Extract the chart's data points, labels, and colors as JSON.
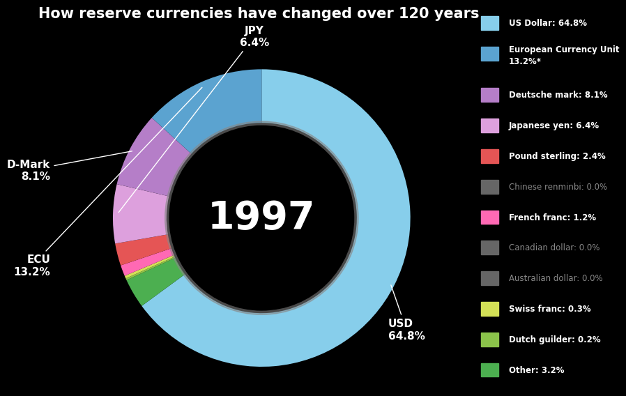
{
  "title": "How reserve currencies have changed over 120 years",
  "year": "1997",
  "background_color": "#000000",
  "title_color": "#ffffff",
  "center_text_color": "#ffffff",
  "segments": [
    {
      "label": "USD",
      "display": "USD\n64.8%",
      "value": 64.8,
      "color": "#87CEEB"
    },
    {
      "label": "Other",
      "display": "",
      "value": 3.2,
      "color": "#4CAF50"
    },
    {
      "label": "Dutch",
      "display": "",
      "value": 0.2,
      "color": "#8BC34A"
    },
    {
      "label": "Swiss",
      "display": "",
      "value": 0.3,
      "color": "#D4E157"
    },
    {
      "label": "French",
      "display": "",
      "value": 1.2,
      "color": "#FF69B4"
    },
    {
      "label": "Pound",
      "display": "",
      "value": 2.4,
      "color": "#E55555"
    },
    {
      "label": "JPY",
      "display": "JPY\n6.4%",
      "value": 6.4,
      "color": "#DDA0DD"
    },
    {
      "label": "D-Mark",
      "display": "D-Mark\n8.1%",
      "value": 8.1,
      "color": "#B57EC8"
    },
    {
      "label": "ECU",
      "display": "ECU\n13.2%",
      "value": 13.2,
      "color": "#5BA3D0"
    }
  ],
  "legend_entries": [
    {
      "label": "US Dollar: 64.8%",
      "color": "#87CEEB",
      "dimmed": false
    },
    {
      "label": "European Currency Unit\n13.2%*",
      "color": "#5BA3D0",
      "dimmed": false
    },
    {
      "label": "Deutsche mark: 8.1%",
      "color": "#B57EC8",
      "dimmed": false
    },
    {
      "label": "Japanese yen: 6.4%",
      "color": "#DDA0DD",
      "dimmed": false
    },
    {
      "label": "Pound sterling: 2.4%",
      "color": "#E55555",
      "dimmed": false
    },
    {
      "label": "Chinese renminbi: 0.0%",
      "color": "#666666",
      "dimmed": true
    },
    {
      "label": "French franc: 1.2%",
      "color": "#FF69B4",
      "dimmed": false
    },
    {
      "label": "Canadian dollar: 0.0%",
      "color": "#666666",
      "dimmed": true
    },
    {
      "label": "Australian dollar: 0.0%",
      "color": "#666666",
      "dimmed": true
    },
    {
      "label": "Swiss franc: 0.3%",
      "color": "#D4E157",
      "dimmed": false
    },
    {
      "label": "Dutch guilder: 0.2%",
      "color": "#8BC34A",
      "dimmed": false
    },
    {
      "label": "Other: 3.2%",
      "color": "#4CAF50",
      "dimmed": false
    }
  ]
}
